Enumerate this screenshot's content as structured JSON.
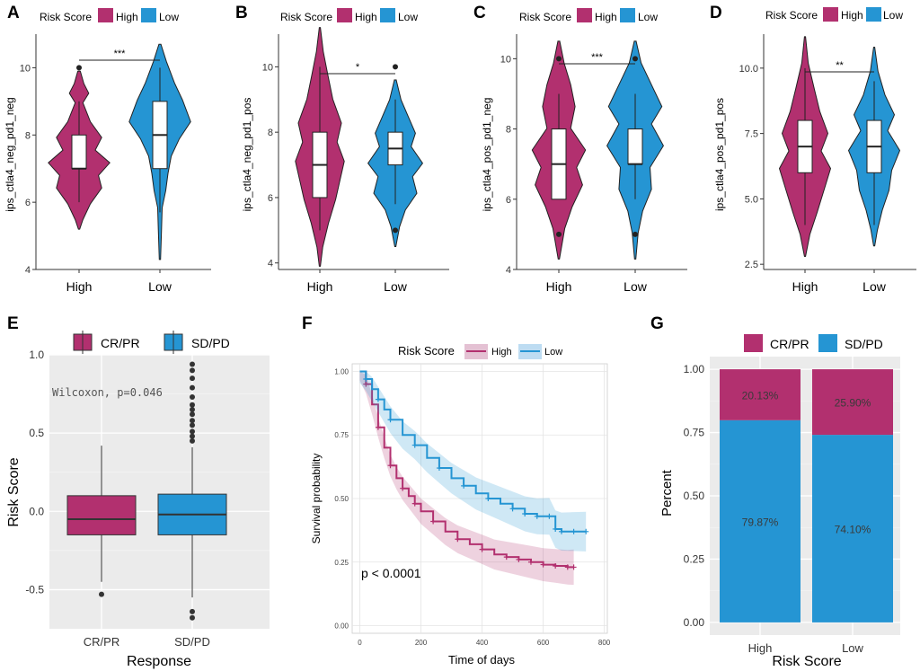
{
  "colors": {
    "high": "#B2306F",
    "low": "#2595D3",
    "panel_bg": "#EBEBEB",
    "grid": "#FFFFFF"
  },
  "panels": {
    "A": {
      "label": "A"
    },
    "B": {
      "label": "B"
    },
    "C": {
      "label": "C"
    },
    "D": {
      "label": "D"
    },
    "E": {
      "label": "E"
    },
    "F": {
      "label": "F"
    },
    "G": {
      "label": "G"
    }
  },
  "chart_data": [
    {
      "id": "A",
      "type": "violin",
      "legend_title": "Risk Score",
      "legend": [
        "High",
        "Low"
      ],
      "ylabel": "ips_ctla4_neg_pd1_neg",
      "categories": [
        "High",
        "Low"
      ],
      "ylim": [
        4,
        11
      ],
      "yticks": [
        4,
        6,
        8,
        10
      ],
      "yticklabels": [
        "4",
        "6",
        "8",
        "10"
      ],
      "significance": "***",
      "box": {
        "High": {
          "q1": 7,
          "median": 7,
          "q3": 8,
          "whisker_low": 6,
          "whisker_high": 9
        },
        "Low": {
          "q1": 7,
          "median": 8,
          "q3": 9,
          "whisker_low": 5.7,
          "whisker_high": 10
        }
      },
      "outliers": {
        "High": [
          10
        ],
        "Low": []
      }
    },
    {
      "id": "B",
      "type": "violin",
      "legend_title": "Risk Score",
      "legend": [
        "High",
        "Low"
      ],
      "ylabel": "ips_ctla4_neg_pd1_pos",
      "categories": [
        "High",
        "Low"
      ],
      "ylim": [
        3.8,
        11
      ],
      "yticks": [
        4,
        6,
        8,
        10
      ],
      "yticklabels": [
        "4",
        "6",
        "8",
        "10"
      ],
      "significance": "*",
      "box": {
        "High": {
          "q1": 6,
          "median": 7,
          "q3": 8,
          "whisker_low": 5,
          "whisker_high": 10
        },
        "Low": {
          "q1": 7,
          "median": 7.5,
          "q3": 8,
          "whisker_low": 5.8,
          "whisker_high": 9
        }
      },
      "outliers": {
        "High": [],
        "Low": [
          10,
          5
        ]
      }
    },
    {
      "id": "C",
      "type": "violin",
      "legend_title": "Risk Score",
      "legend": [
        "High",
        "Low"
      ],
      "ylabel": "ips_ctla4_pos_pd1_neg",
      "categories": [
        "High",
        "Low"
      ],
      "ylim": [
        4,
        10.7
      ],
      "yticks": [
        4,
        6,
        8,
        10
      ],
      "yticklabels": [
        "4",
        "6",
        "8",
        "10"
      ],
      "significance": "***",
      "box": {
        "High": {
          "q1": 6,
          "median": 7,
          "q3": 8,
          "whisker_low": 6,
          "whisker_high": 9
        },
        "Low": {
          "q1": 7,
          "median": 7,
          "q3": 8,
          "whisker_low": 6,
          "whisker_high": 9
        }
      },
      "outliers": {
        "High": [
          10,
          5
        ],
        "Low": [
          10,
          5
        ]
      }
    },
    {
      "id": "D",
      "type": "violin",
      "legend_title": "Risk Score",
      "legend": [
        "High",
        "Low"
      ],
      "ylabel": "ips_ctla4_pos_pd1_pos",
      "categories": [
        "High",
        "Low"
      ],
      "ylim": [
        2.3,
        11.3
      ],
      "yticks": [
        2.5,
        5,
        7.5,
        10
      ],
      "yticklabels": [
        "2.5",
        "5.0",
        "7.5",
        "10.0"
      ],
      "significance": "**",
      "box": {
        "High": {
          "q1": 6,
          "median": 7,
          "q3": 8,
          "whisker_low": 4,
          "whisker_high": 10
        },
        "Low": {
          "q1": 6,
          "median": 7,
          "q3": 8,
          "whisker_low": 4,
          "whisker_high": 9.5
        }
      },
      "outliers": {
        "High": [],
        "Low": []
      }
    },
    {
      "id": "E",
      "type": "box",
      "legend": [
        "CR/PR",
        "SD/PD"
      ],
      "xlabel": "Response",
      "ylabel": "Risk Score",
      "categories": [
        "CR/PR",
        "SD/PD"
      ],
      "ylim": [
        -0.75,
        1.0
      ],
      "yticks": [
        -0.5,
        0,
        0.5,
        1.0
      ],
      "yticklabels": [
        "-0.5",
        "0.0",
        "0.5",
        "1.0"
      ],
      "annotation": "Wilcoxon, p=0.046",
      "box": {
        "CR/PR": {
          "q1": -0.15,
          "median": -0.05,
          "q3": 0.1,
          "whisker_low": -0.45,
          "whisker_high": 0.42
        },
        "SD/PD": {
          "q1": -0.15,
          "median": -0.02,
          "q3": 0.11,
          "whisker_low": -0.55,
          "whisker_high": 0.41
        }
      },
      "outliers": {
        "CR/PR": [
          -0.53
        ],
        "SD/PD": [
          0.94,
          0.9,
          0.85,
          0.79,
          0.73,
          0.68,
          0.65,
          0.62,
          0.58,
          0.55,
          0.51,
          0.48,
          0.45,
          -0.64,
          -0.68
        ]
      }
    },
    {
      "id": "F",
      "type": "line",
      "legend_title": "Risk Score",
      "legend": [
        "High",
        "Low"
      ],
      "xlabel": "Time of days",
      "ylabel": "Survival probability",
      "xlim": [
        -25,
        810
      ],
      "xticks": [
        0,
        200,
        400,
        600,
        800
      ],
      "xticklabels": [
        "0",
        "200",
        "400",
        "600",
        "800"
      ],
      "ylim": [
        -0.03,
        1.03
      ],
      "yticks": [
        0,
        0.25,
        0.5,
        0.75,
        1.0
      ],
      "yticklabels": [
        "0.00",
        "0.25",
        "0.50",
        "0.75",
        "1.00"
      ],
      "annotation": "p < 0.0001",
      "series": [
        {
          "name": "High",
          "x": [
            0,
            20,
            40,
            60,
            80,
            100,
            120,
            140,
            160,
            180,
            200,
            240,
            280,
            320,
            360,
            400,
            440,
            480,
            520,
            560,
            600,
            640,
            680,
            700
          ],
          "y": [
            1.0,
            0.95,
            0.87,
            0.78,
            0.7,
            0.63,
            0.58,
            0.54,
            0.51,
            0.48,
            0.45,
            0.41,
            0.37,
            0.34,
            0.32,
            0.3,
            0.28,
            0.27,
            0.26,
            0.25,
            0.24,
            0.235,
            0.23,
            0.23
          ]
        },
        {
          "name": "Low",
          "x": [
            0,
            20,
            40,
            60,
            80,
            100,
            140,
            180,
            220,
            260,
            300,
            340,
            380,
            420,
            460,
            500,
            540,
            580,
            620,
            640,
            660,
            700,
            740
          ],
          "y": [
            1.0,
            0.97,
            0.93,
            0.89,
            0.85,
            0.81,
            0.75,
            0.71,
            0.66,
            0.62,
            0.58,
            0.55,
            0.52,
            0.5,
            0.48,
            0.46,
            0.44,
            0.43,
            0.43,
            0.38,
            0.37,
            0.37,
            0.37
          ]
        }
      ]
    },
    {
      "id": "G",
      "type": "bar",
      "legend": [
        "CR/PR",
        "SD/PD"
      ],
      "xlabel": "Risk Score",
      "ylabel": "Percent",
      "categories": [
        "High",
        "Low"
      ],
      "ylim": [
        -0.05,
        1.05
      ],
      "yticks": [
        0,
        0.25,
        0.5,
        0.75,
        1.0
      ],
      "yticklabels": [
        "0.00",
        "0.25",
        "0.50",
        "0.75",
        "1.00"
      ],
      "series": [
        {
          "name": "SD/PD",
          "values": [
            0.7987,
            0.741
          ],
          "labels": [
            "79.87%",
            "74.10%"
          ]
        },
        {
          "name": "CR/PR",
          "values": [
            0.2013,
            0.259
          ],
          "labels": [
            "20.13%",
            "25.90%"
          ]
        }
      ]
    }
  ]
}
